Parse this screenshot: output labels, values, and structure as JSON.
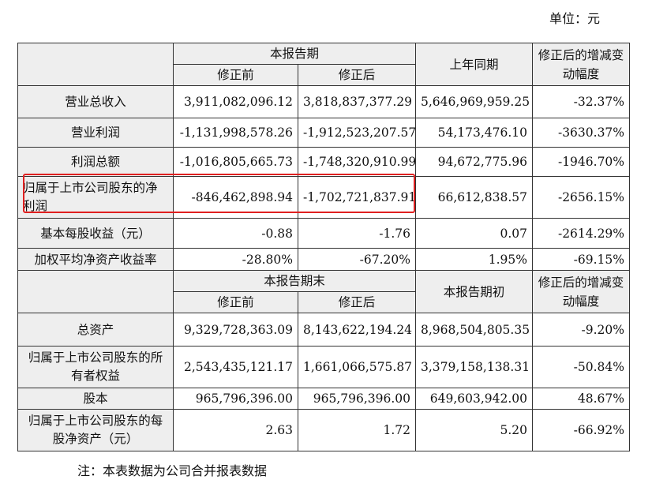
{
  "unit_label": "单位：元",
  "section1": {
    "group_header": "本报告期",
    "col_before": "修正前",
    "col_after": "修正后",
    "col_prev": "上年同期",
    "col_change": "修正后的增减变动幅度",
    "rows": [
      {
        "label": "营业总收入",
        "before": "3,911,082,096.12",
        "after": "3,818,837,377.29",
        "prev": "5,646,969,959.25",
        "change": "-32.37%"
      },
      {
        "label": "营业利润",
        "before": "-1,131,998,578.26",
        "after": "-1,912,523,207.57",
        "prev": "54,173,476.10",
        "change": "-3630.37%"
      },
      {
        "label": "利润总额",
        "before": "-1,016,805,665.73",
        "after": "-1,748,320,910.99",
        "prev": "94,672,775.96",
        "change": "-1946.70%"
      },
      {
        "label": "归属于上市公司股东的净利润",
        "before": "-846,462,898.94",
        "after": "-1,702,721,837.91",
        "prev": "66,612,838.57",
        "change": "-2656.15%"
      },
      {
        "label": "基本每股收益（元）",
        "before": "-0.88",
        "after": "-1.76",
        "prev": "0.07",
        "change": "-2614.29%"
      },
      {
        "label": "加权平均净资产收益率",
        "before": "-28.80%",
        "after": "-67.20%",
        "prev": "1.95%",
        "change": "-69.15%"
      }
    ]
  },
  "section2": {
    "group_header": "本报告期末",
    "col_before": "修正前",
    "col_after": "修正后",
    "col_prev": "本报告期初",
    "col_change": "修正后的增减变动幅度",
    "rows": [
      {
        "label": "总资产",
        "before": "9,329,728,363.09",
        "after": "8,143,622,194.24",
        "prev": "8,968,504,805.35",
        "change": "-9.20%"
      },
      {
        "label": "归属于上市公司股东的所有者权益",
        "before": "2,543,435,121.17",
        "after": "1,661,066,575.87",
        "prev": "3,379,158,138.31",
        "change": "-50.84%"
      },
      {
        "label": "股本",
        "before": "965,796,396.00",
        "after": "965,796,396.00",
        "prev": "649,603,942.00",
        "change": "48.67%"
      },
      {
        "label": "归属于上市公司股东的每股净资产（元）",
        "before": "2.63",
        "after": "1.72",
        "prev": "5.20",
        "change": "-66.92%"
      }
    ]
  },
  "note": "注：本表数据为公司合并报表数据",
  "highlight_color": "#e02020"
}
